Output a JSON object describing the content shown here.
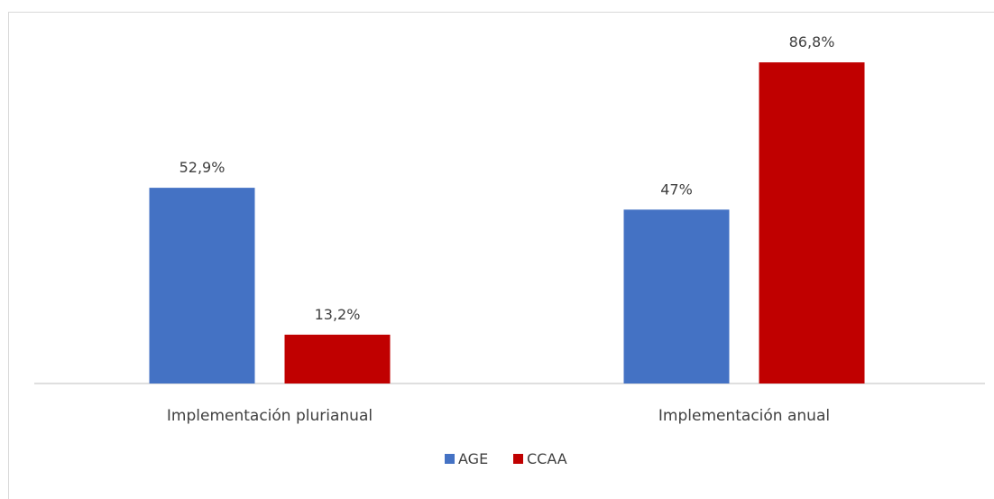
{
  "chart_data": {
    "type": "bar",
    "categories": [
      "Implementación plurianual",
      "Implementación anual"
    ],
    "series": [
      {
        "name": "AGE",
        "values": [
          52.9,
          47
        ],
        "labels": [
          "52,9%",
          "47%"
        ],
        "color": "#4472C4"
      },
      {
        "name": "CCAA",
        "values": [
          13.2,
          86.8
        ],
        "labels": [
          "13,2%",
          "86,8%"
        ],
        "color": "#C00000"
      }
    ],
    "ylim": [
      0,
      100
    ],
    "grid": false,
    "legend": "bottom-center",
    "axis_color": "#bfbfbf",
    "text_color": "#404040"
  }
}
